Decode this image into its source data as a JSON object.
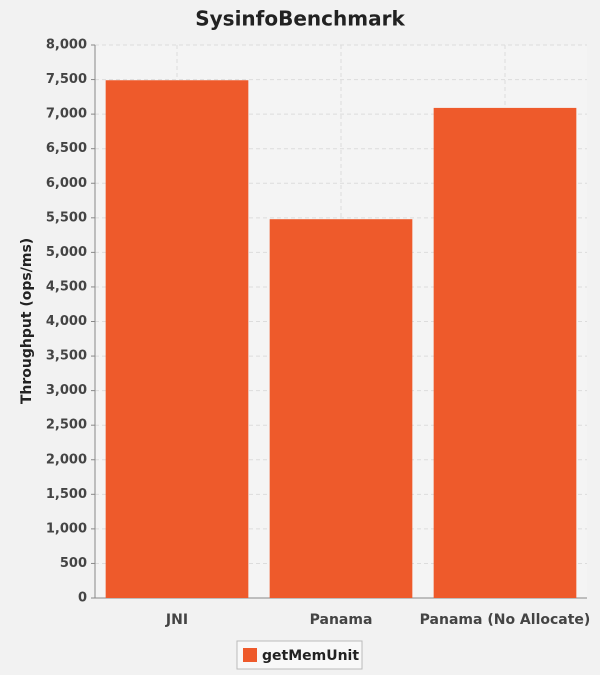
{
  "chart_data": {
    "type": "bar",
    "title": "SysinfoBenchmark",
    "y_label": "Throughput (ops/ms)",
    "categories": [
      "JNI",
      "Panama",
      "Panama (No Allocate)"
    ],
    "series": [
      {
        "name": "getMemUnit",
        "color": "#ee5a2b",
        "values": [
          7490,
          5480,
          7090
        ]
      }
    ],
    "ylim": [
      0,
      8000
    ],
    "yticks": [
      0,
      500,
      {
        "value": 1000,
        "label": "1,000"
      },
      {
        "value": 1500,
        "label": "1,500"
      },
      {
        "value": 2000,
        "label": "2,000"
      },
      {
        "value": 2500,
        "label": "2,500"
      },
      {
        "value": 3000,
        "label": "3,000"
      },
      {
        "value": 3500,
        "label": "3,500"
      },
      {
        "value": 4000,
        "label": "4,000"
      },
      {
        "value": 4500,
        "label": "4,500"
      },
      {
        "value": 5000,
        "label": "5,000"
      },
      {
        "value": 5500,
        "label": "5,500"
      },
      {
        "value": 6000,
        "label": "6,000"
      },
      {
        "value": 6500,
        "label": "6,500"
      },
      {
        "value": 7000,
        "label": "7,000"
      },
      {
        "value": 7500,
        "label": "7,500"
      },
      {
        "value": 8000,
        "label": "8,000"
      }
    ],
    "grid": true,
    "legend": "bottom"
  }
}
